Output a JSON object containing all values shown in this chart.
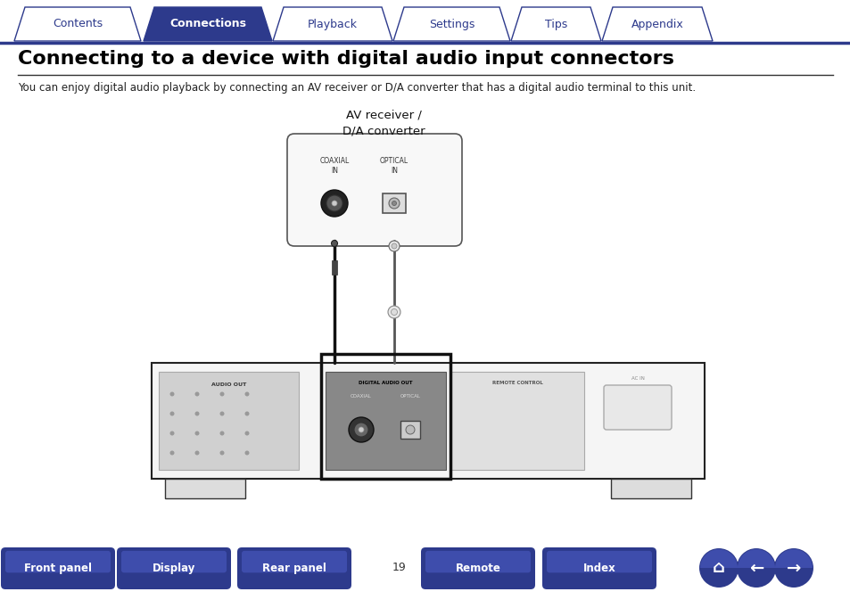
{
  "bg_color": "#ffffff",
  "tab_labels": [
    "Contents",
    "Connections",
    "Playback",
    "Settings",
    "Tips",
    "Appendix"
  ],
  "active_tab": 1,
  "tab_color_active": "#2d3a8c",
  "tab_color_inactive": "#ffffff",
  "tab_border_color": "#2d3a8c",
  "tab_text_color_active": "#ffffff",
  "tab_text_color_inactive": "#2d3a8c",
  "title": "Connecting to a device with digital audio input connectors",
  "title_color": "#000000",
  "title_fontsize": 16,
  "desc_text": "You can enjoy digital audio playback by connecting an AV receiver or D/A converter that has a digital audio terminal to this unit.",
  "desc_fontsize": 8.5,
  "bottom_buttons": [
    "Front panel",
    "Display",
    "Rear panel",
    "Remote",
    "Index"
  ],
  "page_number": "19",
  "btn_color_top": "#5060cc",
  "btn_color_bot": "#2d3a8c",
  "btn_text_color": "#ffffff",
  "diagram_label_av": "AV receiver /\nD/A converter",
  "diagram_label_coaxial": "COAXIAL\nIN",
  "diagram_label_optical": "OPTICAL\nIN"
}
